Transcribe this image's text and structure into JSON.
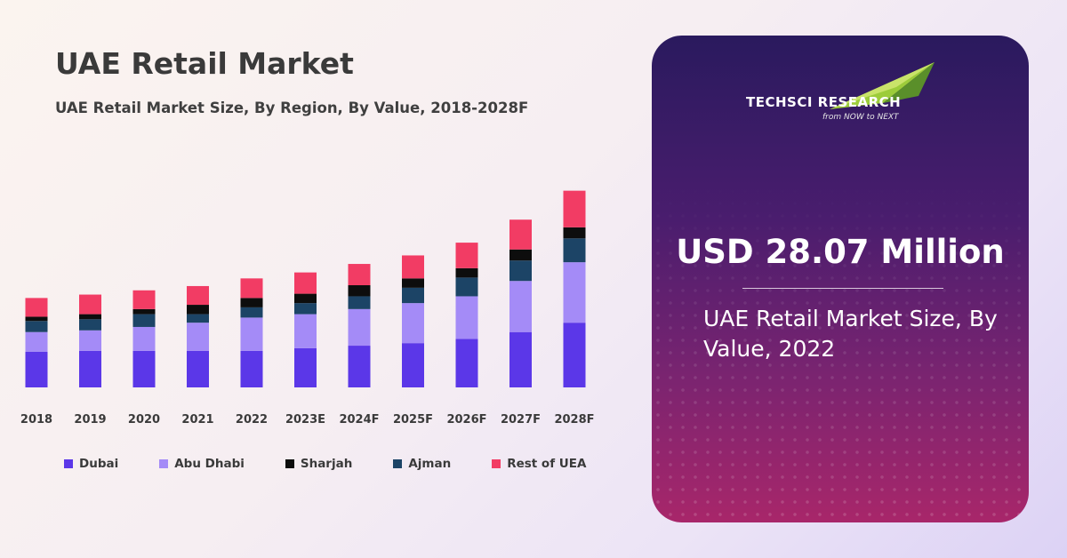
{
  "header": {
    "title": "UAE Retail Market",
    "subtitle": "UAE Retail Market Size, By Region, By Value, 2018-2028F"
  },
  "chart_data": {
    "type": "bar",
    "stacked": true,
    "categories": [
      "2018",
      "2019",
      "2020",
      "2021",
      "2022",
      "2023E",
      "2024F",
      "2025F",
      "2026F",
      "2027F",
      "2028F"
    ],
    "series": [
      {
        "name": "Dubai",
        "color": "#5b37e8",
        "values": [
          42,
          43,
          43,
          43,
          43,
          46,
          49,
          52,
          57,
          65,
          76
        ]
      },
      {
        "name": "Abu Dhabi",
        "color": "#a48bf7",
        "values": [
          23,
          24,
          28,
          33,
          39,
          40,
          43,
          47,
          50,
          60,
          71
        ]
      },
      {
        "name": "Ajman",
        "color": "#1c4466",
        "values": [
          13,
          13,
          15,
          10,
          12,
          13,
          15,
          18,
          22,
          24,
          28
        ]
      },
      {
        "name": "Sharjah",
        "color": "#0d0d0d",
        "values": [
          5,
          6,
          6,
          11,
          11,
          11,
          13,
          11,
          11,
          13,
          13
        ]
      },
      {
        "name": "Rest of UEA",
        "color": "#f23c64",
        "values": [
          22,
          23,
          22,
          22,
          23,
          25,
          25,
          27,
          30,
          35,
          43
        ]
      }
    ],
    "ylim": [
      0,
      240
    ],
    "grid": false,
    "legend": [
      "Dubai",
      "Abu Dhabi",
      "Sharjah",
      "Ajman",
      "Rest of UEA"
    ],
    "legend_position": "bottom"
  },
  "panel": {
    "logo_name": "TECHSCI RESEARCH",
    "logo_tagline": "from NOW to NEXT",
    "value": "USD 28.07 Million",
    "caption": "UAE Retail Market Size, By Value, 2022"
  }
}
